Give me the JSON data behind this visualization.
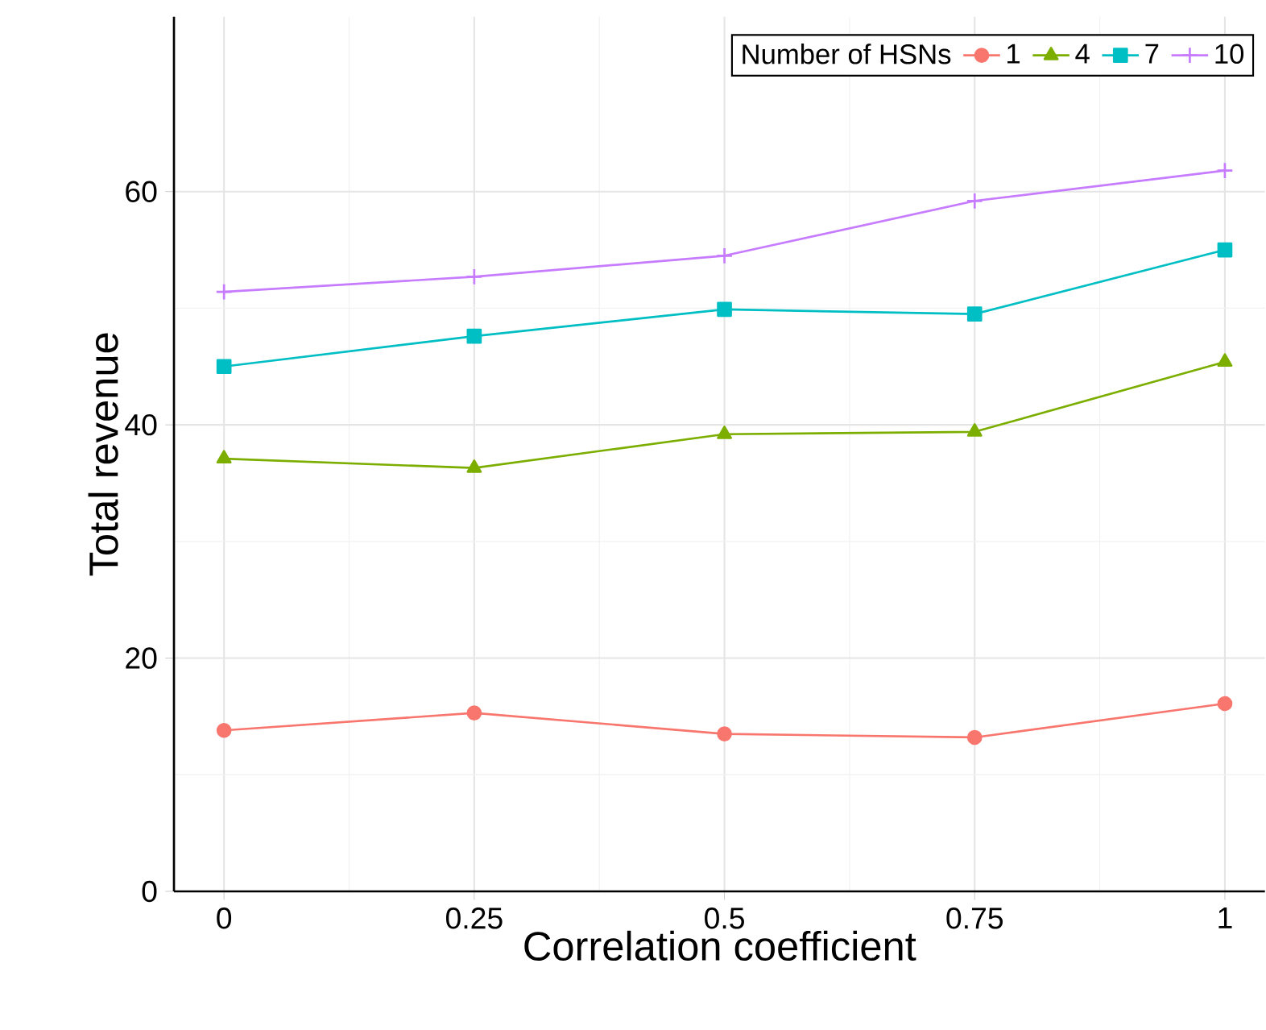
{
  "chart_data": {
    "type": "line",
    "xlabel": "Correlation coefficient",
    "ylabel": "Total revenue",
    "legend_title": "Number of HSNs",
    "x": [
      0,
      0.25,
      0.5,
      0.75,
      1
    ],
    "series": [
      {
        "name": "1",
        "color": "#f8766d",
        "marker": "circle",
        "values": [
          13.8,
          15.3,
          13.5,
          13.2,
          16.1
        ]
      },
      {
        "name": "4",
        "color": "#7cae00",
        "marker": "triangle",
        "values": [
          37.1,
          36.3,
          39.2,
          39.4,
          45.4
        ]
      },
      {
        "name": "7",
        "color": "#00bfc4",
        "marker": "square",
        "values": [
          45.0,
          47.6,
          49.9,
          49.5,
          55.0
        ]
      },
      {
        "name": "10",
        "color": "#c77cff",
        "marker": "cross",
        "values": [
          51.4,
          52.7,
          54.5,
          59.2,
          61.8
        ]
      }
    ],
    "xlim": [
      -0.05,
      1.04
    ],
    "ylim": [
      0,
      75
    ],
    "xticks": [
      0,
      0.25,
      0.5,
      0.75,
      1
    ],
    "yticks": [
      0,
      20,
      40,
      60
    ],
    "grid": true,
    "legend": "top right",
    "line_style": "solid"
  }
}
